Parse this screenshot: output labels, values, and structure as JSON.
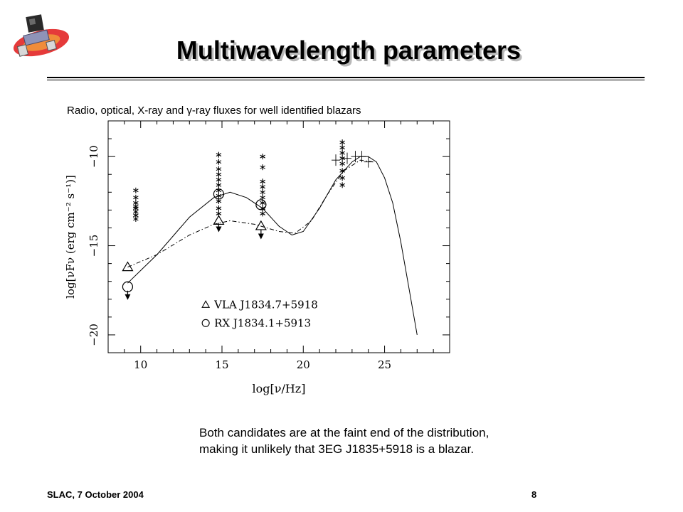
{
  "slide": {
    "title": "Multiwavelength parameters",
    "footer_left": "SLAC, 7 October 2004",
    "page_number": "8",
    "logo_icon": "glast-satellite-icon",
    "note_line1": "Both candidates are at the faint end of the distribution,",
    "note_line2": "making it unlikely that 3EG J1835+5918 is a blazar."
  },
  "chart_data": {
    "type": "scatter",
    "title": "Radio, optical, X-ray and γ-ray fluxes for well identified blazars",
    "xlabel": "log[ν/Hz]",
    "ylabel": "log[νFν (erg cm⁻² s⁻¹)]",
    "xlim": [
      8,
      29
    ],
    "ylim": [
      -21,
      -8
    ],
    "x_ticks": [
      10,
      15,
      20,
      25
    ],
    "y_ticks": [
      -10,
      -15,
      -20
    ],
    "grid": false,
    "legend_position": "bottom-center",
    "series": [
      {
        "name": "VLA J1834.7+5918",
        "marker": "triangle",
        "points": [
          [
            9.2,
            -16.2
          ],
          [
            14.8,
            -13.6
          ],
          [
            17.4,
            -13.9
          ]
        ],
        "upper_limits": [
          [
            14.8,
            -14.0
          ],
          [
            17.4,
            -14.4
          ]
        ]
      },
      {
        "name": "RX J1834.1+5913",
        "marker": "circle",
        "points": [
          [
            9.2,
            -17.3
          ],
          [
            14.8,
            -12.1
          ],
          [
            17.4,
            -12.7
          ]
        ],
        "upper_limits": [
          [
            9.2,
            -17.8
          ]
        ]
      },
      {
        "marker": "asterisk",
        "points": [
          [
            9.7,
            -11.9
          ],
          [
            9.7,
            -12.3
          ],
          [
            9.7,
            -12.6
          ],
          [
            9.7,
            -12.8
          ],
          [
            9.7,
            -12.9
          ],
          [
            9.7,
            -13.1
          ],
          [
            9.7,
            -13.3
          ],
          [
            9.7,
            -13.5
          ],
          [
            14.8,
            -9.9
          ],
          [
            14.8,
            -10.3
          ],
          [
            14.8,
            -10.7
          ],
          [
            14.8,
            -11.0
          ],
          [
            14.8,
            -11.3
          ],
          [
            14.8,
            -11.6
          ],
          [
            14.8,
            -11.9
          ],
          [
            14.8,
            -12.2
          ],
          [
            14.8,
            -12.5
          ],
          [
            14.8,
            -12.9
          ],
          [
            14.8,
            -13.2
          ],
          [
            17.5,
            -10.0
          ],
          [
            17.5,
            -10.6
          ],
          [
            17.5,
            -11.4
          ],
          [
            17.5,
            -11.7
          ],
          [
            17.5,
            -12.0
          ],
          [
            17.5,
            -12.3
          ],
          [
            17.5,
            -12.6
          ],
          [
            17.5,
            -12.9
          ],
          [
            17.5,
            -13.2
          ],
          [
            22.4,
            -9.2
          ],
          [
            22.4,
            -9.5
          ],
          [
            22.4,
            -9.8
          ],
          [
            22.4,
            -10.1
          ],
          [
            22.4,
            -10.4
          ],
          [
            22.4,
            -10.8
          ],
          [
            22.4,
            -11.2
          ],
          [
            22.4,
            -11.6
          ]
        ]
      },
      {
        "marker": "cross",
        "points": [
          [
            22.0,
            -10.2
          ],
          [
            22.7,
            -10.1
          ],
          [
            23.2,
            -10.0
          ],
          [
            23.6,
            -10.0
          ],
          [
            24.0,
            -10.3
          ]
        ]
      }
    ],
    "models": [
      {
        "style": "solid",
        "points": [
          [
            9.2,
            -17.1
          ],
          [
            11,
            -15.5
          ],
          [
            13,
            -13.4
          ],
          [
            14.5,
            -12.3
          ],
          [
            15.5,
            -12.0
          ],
          [
            16.5,
            -12.3
          ],
          [
            17.5,
            -12.9
          ],
          [
            18.5,
            -13.9
          ],
          [
            19.3,
            -14.4
          ],
          [
            20,
            -14.2
          ],
          [
            21,
            -12.9
          ],
          [
            22,
            -11.3
          ],
          [
            23,
            -10.3
          ],
          [
            23.5,
            -10.0
          ],
          [
            24,
            -10.0
          ],
          [
            24.5,
            -10.3
          ],
          [
            25,
            -11.2
          ],
          [
            25.5,
            -12.6
          ],
          [
            26,
            -14.8
          ],
          [
            26.5,
            -17.4
          ],
          [
            27,
            -20.0
          ]
        ]
      },
      {
        "style": "dash-dot",
        "points": [
          [
            9.2,
            -16.2
          ],
          [
            11,
            -15.5
          ],
          [
            13,
            -14.4
          ],
          [
            14.5,
            -13.8
          ],
          [
            15.5,
            -13.6
          ],
          [
            17,
            -13.8
          ],
          [
            18.5,
            -14.2
          ],
          [
            19.5,
            -14.3
          ],
          [
            20.5,
            -13.6
          ],
          [
            21.5,
            -12.1
          ],
          [
            22.5,
            -10.8
          ],
          [
            23.5,
            -10.2
          ],
          [
            24.3,
            -10.3
          ]
        ]
      }
    ]
  }
}
